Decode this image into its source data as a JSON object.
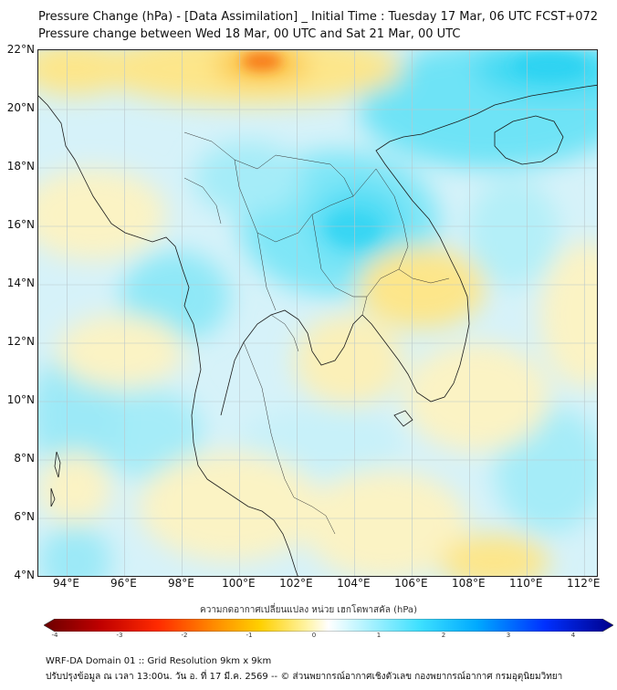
{
  "title": {
    "line1": "Pressure Change (hPa) - [Data Assimilation] _ Initial Time : Tuesday 17 Mar, 06 UTC FCST+072",
    "line2": "Pressure change between Wed 18 Mar, 00 UTC and Sat 21 Mar, 00 UTC"
  },
  "map": {
    "lat_labels": [
      "22°N",
      "20°N",
      "18°N",
      "16°N",
      "14°N",
      "12°N",
      "10°N",
      "8°N",
      "6°N",
      "4°N"
    ],
    "lon_labels": [
      "94°E",
      "96°E",
      "98°E",
      "100°E",
      "102°E",
      "104°E",
      "106°E",
      "108°E",
      "110°E",
      "112°E"
    ],
    "lat_range": [
      4,
      22
    ],
    "lon_range": [
      93,
      112.5
    ],
    "field_colors": {
      "background": "#d6f2f9",
      "positive_light": "#a8ecf8",
      "positive_mid": "#5fe0f5",
      "negative_light": "#fbf3c4",
      "negative_mid": "#fde68a",
      "negative_strong": "#fcc02e",
      "negative_peak": "#f87a1d"
    }
  },
  "colorbar": {
    "caption": "ความกดอากาศเปลี่ยนแปลง หน่วย เฮกโตพาสคัล (hPa)",
    "tick_labels": [
      "-4",
      "-3",
      "-2",
      "-1",
      "0",
      "1",
      "2",
      "3",
      "4"
    ],
    "range": [
      -4,
      4
    ],
    "colors": [
      "#6b0000",
      "#c00000",
      "#ff2a00",
      "#ff8c00",
      "#ffd000",
      "#fff3a0",
      "#ffffff",
      "#b8f4ff",
      "#3ee0ff",
      "#00aaff",
      "#0030ff",
      "#00008b"
    ]
  },
  "footer": {
    "line1": "WRF-DA Domain 01 :: Grid Resolution 9km x 9km",
    "line2": "ปรับปรุงข้อมูล ณ เวลา 13:00น. วัน อ. ที่ 17 มี.ค. 2569 -- © ส่วนพยากรณ์อากาศเชิงตัวเลข กองพยากรณ์อากาศ กรมอุตุนิยมวิทยา"
  }
}
